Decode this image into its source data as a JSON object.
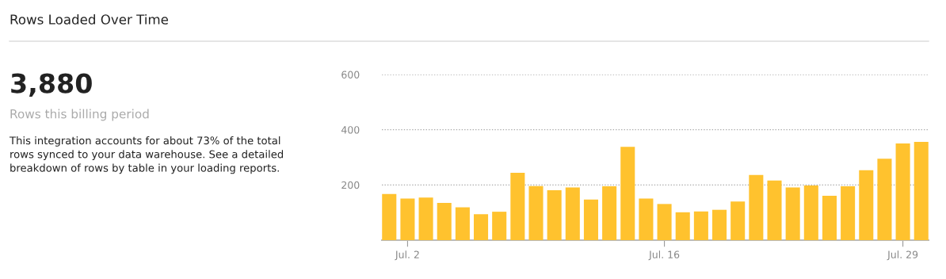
{
  "chart_data": [
    {
      "type": "other",
      "title": "Rows Loaded Over Time",
      "annotations": [
        "3,880",
        "Rows this billing period",
        "This integration accounts for about 73% of the total rows synced to your data warehouse. See a detailed breakdown of rows by table in your loading reports."
      ]
    },
    {
      "type": "bar",
      "categories": [
        null,
        "Jul. 2",
        null,
        null,
        null,
        null,
        null,
        null,
        null,
        null,
        null,
        null,
        null,
        null,
        null,
        "Jul. 16",
        null,
        null,
        null,
        null,
        null,
        null,
        null,
        null,
        null,
        null,
        null,
        null,
        "Jul. 29",
        null
      ],
      "values": [
        167,
        151,
        154,
        135,
        119,
        94,
        103,
        244,
        196,
        181,
        191,
        147,
        195,
        338,
        151,
        131,
        101,
        104,
        110,
        140,
        236,
        216,
        191,
        198,
        161,
        195,
        253,
        295,
        350,
        356
      ],
      "color": "#ffc22e",
      "ylim": [
        0,
        600
      ],
      "yticks": [
        200,
        400,
        600
      ],
      "grid": "y"
    }
  ]
}
